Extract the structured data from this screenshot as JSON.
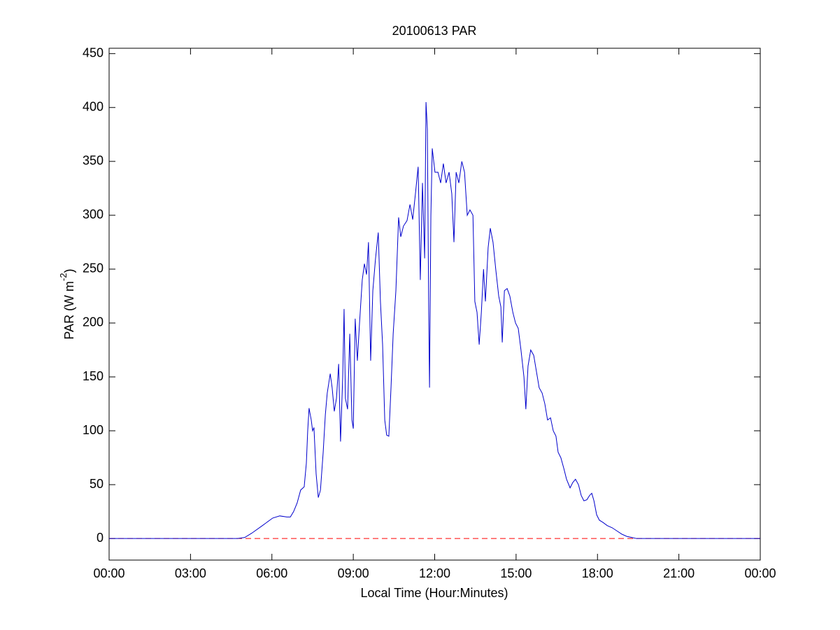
{
  "chart_data": {
    "type": "line",
    "title": "20100613 PAR",
    "x_label": "Local Time (Hour:Minutes)",
    "y_label": [
      "PAR (W m",
      "-2",
      ")"
    ],
    "xlim": [
      0,
      24
    ],
    "xticks": [
      {
        "value": 0,
        "label": "00:00"
      },
      {
        "value": 3,
        "label": "03:00"
      },
      {
        "value": 6,
        "label": "06:00"
      },
      {
        "value": 9,
        "label": "09:00"
      },
      {
        "value": 12,
        "label": "12:00"
      },
      {
        "value": 15,
        "label": "15:00"
      },
      {
        "value": 18,
        "label": "18:00"
      },
      {
        "value": 21,
        "label": "21:00"
      },
      {
        "value": 24,
        "label": "00:00"
      }
    ],
    "ylim": [
      -20,
      455
    ],
    "yticks": [
      0,
      50,
      100,
      150,
      200,
      250,
      300,
      350,
      400,
      450
    ],
    "grid": false,
    "reference_lines": [
      {
        "y": 0,
        "color": "#ff0000",
        "dashed": true
      }
    ],
    "series": [
      {
        "color": "#0000cc",
        "x": [
          0,
          1,
          2,
          3,
          4,
          4.74,
          5.0,
          5.26,
          5.65,
          6.03,
          6.29,
          6.55,
          6.68,
          6.8,
          6.93,
          7.06,
          7.19,
          7.27,
          7.32,
          7.37,
          7.45,
          7.5,
          7.55,
          7.63,
          7.71,
          7.79,
          7.89,
          7.97,
          8.04,
          8.15,
          8.22,
          8.3,
          8.38,
          8.46,
          8.53,
          8.61,
          8.66,
          8.71,
          8.79,
          8.87,
          8.95,
          9.0,
          9.07,
          9.15,
          9.23,
          9.33,
          9.41,
          9.49,
          9.56,
          9.64,
          9.72,
          9.82,
          9.92,
          10.0,
          10.08,
          10.16,
          10.23,
          10.31,
          10.39,
          10.47,
          10.57,
          10.67,
          10.75,
          10.85,
          10.98,
          11.09,
          11.19,
          11.29,
          11.39,
          11.47,
          11.55,
          11.63,
          11.68,
          11.73,
          11.78,
          11.81,
          11.86,
          11.91,
          12.01,
          12.12,
          12.22,
          12.32,
          12.42,
          12.53,
          12.63,
          12.71,
          12.79,
          12.89,
          13.0,
          13.1,
          13.2,
          13.3,
          13.41,
          13.48,
          13.56,
          13.64,
          13.72,
          13.8,
          13.87,
          13.97,
          14.05,
          14.15,
          14.25,
          14.36,
          14.44,
          14.49,
          14.57,
          14.67,
          14.77,
          14.88,
          14.98,
          15.08,
          15.18,
          15.29,
          15.36,
          15.44,
          15.54,
          15.65,
          15.75,
          15.85,
          15.96,
          16.06,
          16.16,
          16.27,
          16.37,
          16.47,
          16.55,
          16.65,
          16.76,
          16.86,
          16.99,
          17.09,
          17.19,
          17.3,
          17.4,
          17.5,
          17.61,
          17.71,
          17.79,
          17.87,
          17.97,
          18.07,
          18.2,
          18.36,
          18.54,
          18.72,
          18.9,
          19.08,
          19.26,
          19.44,
          20,
          21,
          22,
          23,
          24
        ],
        "values": [
          0,
          0,
          0,
          0,
          0,
          0,
          1,
          5,
          12,
          19,
          21,
          20,
          20,
          25,
          33,
          45,
          48,
          70,
          100,
          121,
          110,
          100,
          103,
          60,
          38,
          45,
          80,
          115,
          135,
          153,
          140,
          118,
          130,
          162,
          90,
          150,
          213,
          130,
          120,
          190,
          110,
          102,
          204,
          165,
          200,
          240,
          255,
          245,
          275,
          165,
          230,
          260,
          284,
          220,
          180,
          110,
          96,
          95,
          140,
          190,
          230,
          298,
          280,
          290,
          295,
          310,
          296,
          320,
          345,
          240,
          330,
          260,
          405,
          380,
          210,
          140,
          300,
          362,
          340,
          340,
          330,
          348,
          330,
          340,
          320,
          275,
          340,
          330,
          350,
          340,
          300,
          305,
          300,
          220,
          210,
          180,
          210,
          250,
          220,
          270,
          288,
          275,
          250,
          225,
          215,
          182,
          230,
          232,
          225,
          210,
          200,
          195,
          175,
          150,
          120,
          160,
          175,
          170,
          155,
          140,
          135,
          125,
          110,
          112,
          100,
          95,
          80,
          75,
          65,
          55,
          47,
          52,
          55,
          50,
          40,
          35,
          36,
          40,
          42,
          35,
          22,
          17,
          15,
          12,
          10,
          7,
          4,
          2,
          1,
          0,
          0,
          0,
          0,
          0,
          0
        ]
      }
    ]
  }
}
